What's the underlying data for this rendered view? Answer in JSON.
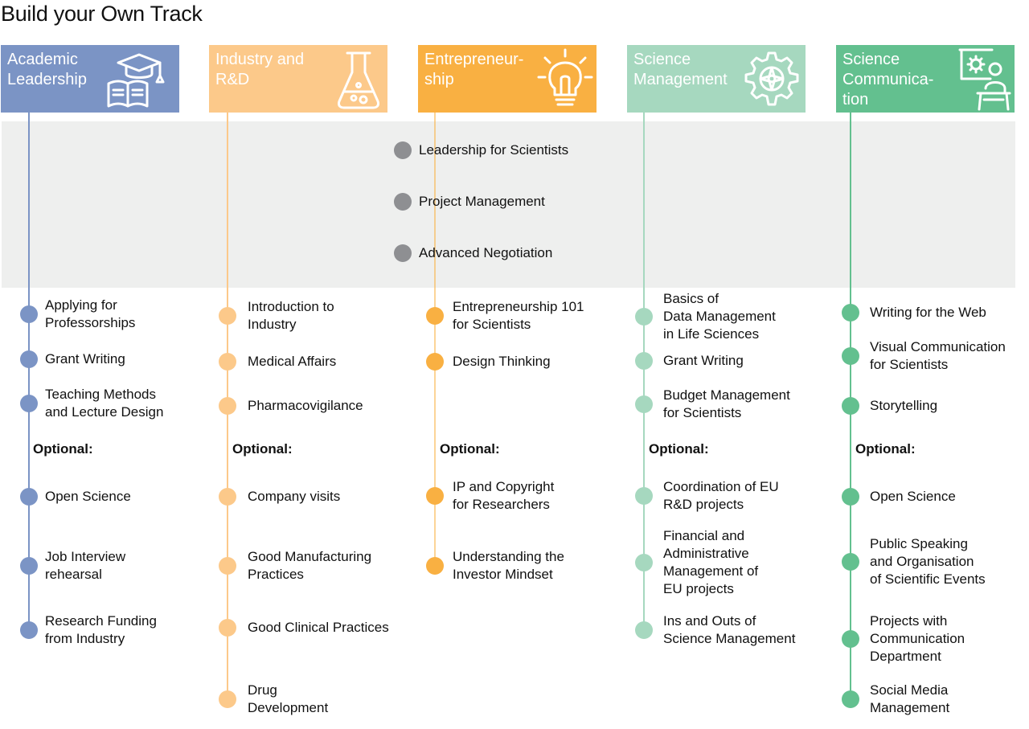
{
  "title": "Build your Own Track",
  "core_items": [
    "Leadership for Scientists",
    "Project Management",
    "Advanced Negotiation"
  ],
  "tracks": [
    {
      "name": "Academic\nLeadership",
      "color": "#7b94c5",
      "icon": "graduation-cap-book-icon",
      "items": [
        "Applying for\nProfessorships",
        "Grant Writing",
        "Teaching Methods\nand Lecture Design"
      ],
      "optional_label": "Optional:",
      "optional": [
        "Open Science",
        "Job Interview\nrehearsal",
        "Research Funding\nfrom Industry"
      ]
    },
    {
      "name": "Industry and\nR&D",
      "color": "#fcc98a",
      "icon": "flask-icon",
      "items": [
        "Introduction to\nIndustry",
        "Medical Affairs",
        "Pharmacovigilance"
      ],
      "optional_label": "Optional:",
      "optional": [
        "Company visits",
        "Good Manufacturing\nPractices",
        "Good Clinical Practices",
        "Drug\nDevelopment"
      ]
    },
    {
      "name": "Entrepreneur-\nship",
      "color": "#f9b042",
      "icon": "lightbulb-icon",
      "items": [
        "Entrepreneurship 101\nfor Scientists",
        "Design Thinking"
      ],
      "optional_label": "Optional:",
      "optional": [
        "IP and Copyright\nfor Researchers",
        "Understanding the\nInvestor Mindset"
      ]
    },
    {
      "name": "Science\nManagement",
      "color": "#a6d8bf",
      "icon": "gear-compass-icon",
      "items": [
        "Basics of\nData Management\nin Life Sciences",
        "Grant Writing",
        "Budget Management\nfor Scientists"
      ],
      "optional_label": "Optional:",
      "optional": [
        "Coordination of EU\nR&D projects",
        "Financial and\nAdministrative\nManagement of\nEU projects",
        "Ins and Outs of\nScience Management"
      ]
    },
    {
      "name": "Science\nCommunica-\ntion",
      "color": "#63c08f",
      "icon": "presenter-board-icon",
      "items": [
        "Writing for the Web",
        "Visual Communication\nfor Scientists",
        "Storytelling"
      ],
      "optional_label": "Optional:",
      "optional": [
        "Open Science",
        "Public Speaking\nand Organisation\nof Scientific Events",
        "Projects with\nCommunication\nDepartment",
        "Social Media\nManagement"
      ]
    }
  ]
}
